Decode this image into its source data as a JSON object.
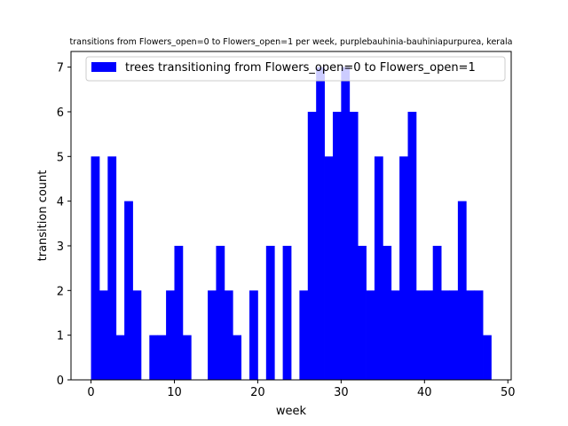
{
  "chart_data": {
    "type": "bar",
    "title": "transitions from Flowers_open=0 to Flowers_open=1 per week, purplebauhinia-bauhiniapurpurea, kerala",
    "xlabel": "week",
    "ylabel": "transition count",
    "xlim": [
      -2.4,
      50.4
    ],
    "ylim": [
      0,
      7.35
    ],
    "xticks": [
      0,
      10,
      20,
      30,
      40,
      50
    ],
    "yticks": [
      0,
      1,
      2,
      3,
      4,
      5,
      6,
      7
    ],
    "bar_width": 1,
    "legend_position": "top-right",
    "colors": {
      "bar": "#0000ff",
      "axis": "#000000"
    },
    "series": [
      {
        "name": "trees transitioning from Flowers_open=0 to Flowers_open=1",
        "x": [
          0,
          1,
          2,
          3,
          4,
          5,
          6,
          7,
          8,
          9,
          10,
          11,
          12,
          13,
          14,
          15,
          16,
          17,
          18,
          19,
          20,
          21,
          22,
          23,
          24,
          25,
          26,
          27,
          28,
          29,
          30,
          31,
          32,
          33,
          34,
          35,
          36,
          37,
          38,
          39,
          40,
          41,
          42,
          43,
          44,
          45,
          46,
          47
        ],
        "values": [
          5,
          2,
          5,
          1,
          4,
          2,
          0,
          1,
          1,
          2,
          3,
          1,
          0,
          0,
          2,
          3,
          2,
          1,
          0,
          2,
          0,
          3,
          0,
          3,
          0,
          2,
          6,
          7,
          5,
          6,
          7,
          6,
          3,
          2,
          5,
          3,
          2,
          5,
          6,
          2,
          2,
          3,
          2,
          2,
          4,
          2,
          2,
          1
        ]
      }
    ]
  }
}
